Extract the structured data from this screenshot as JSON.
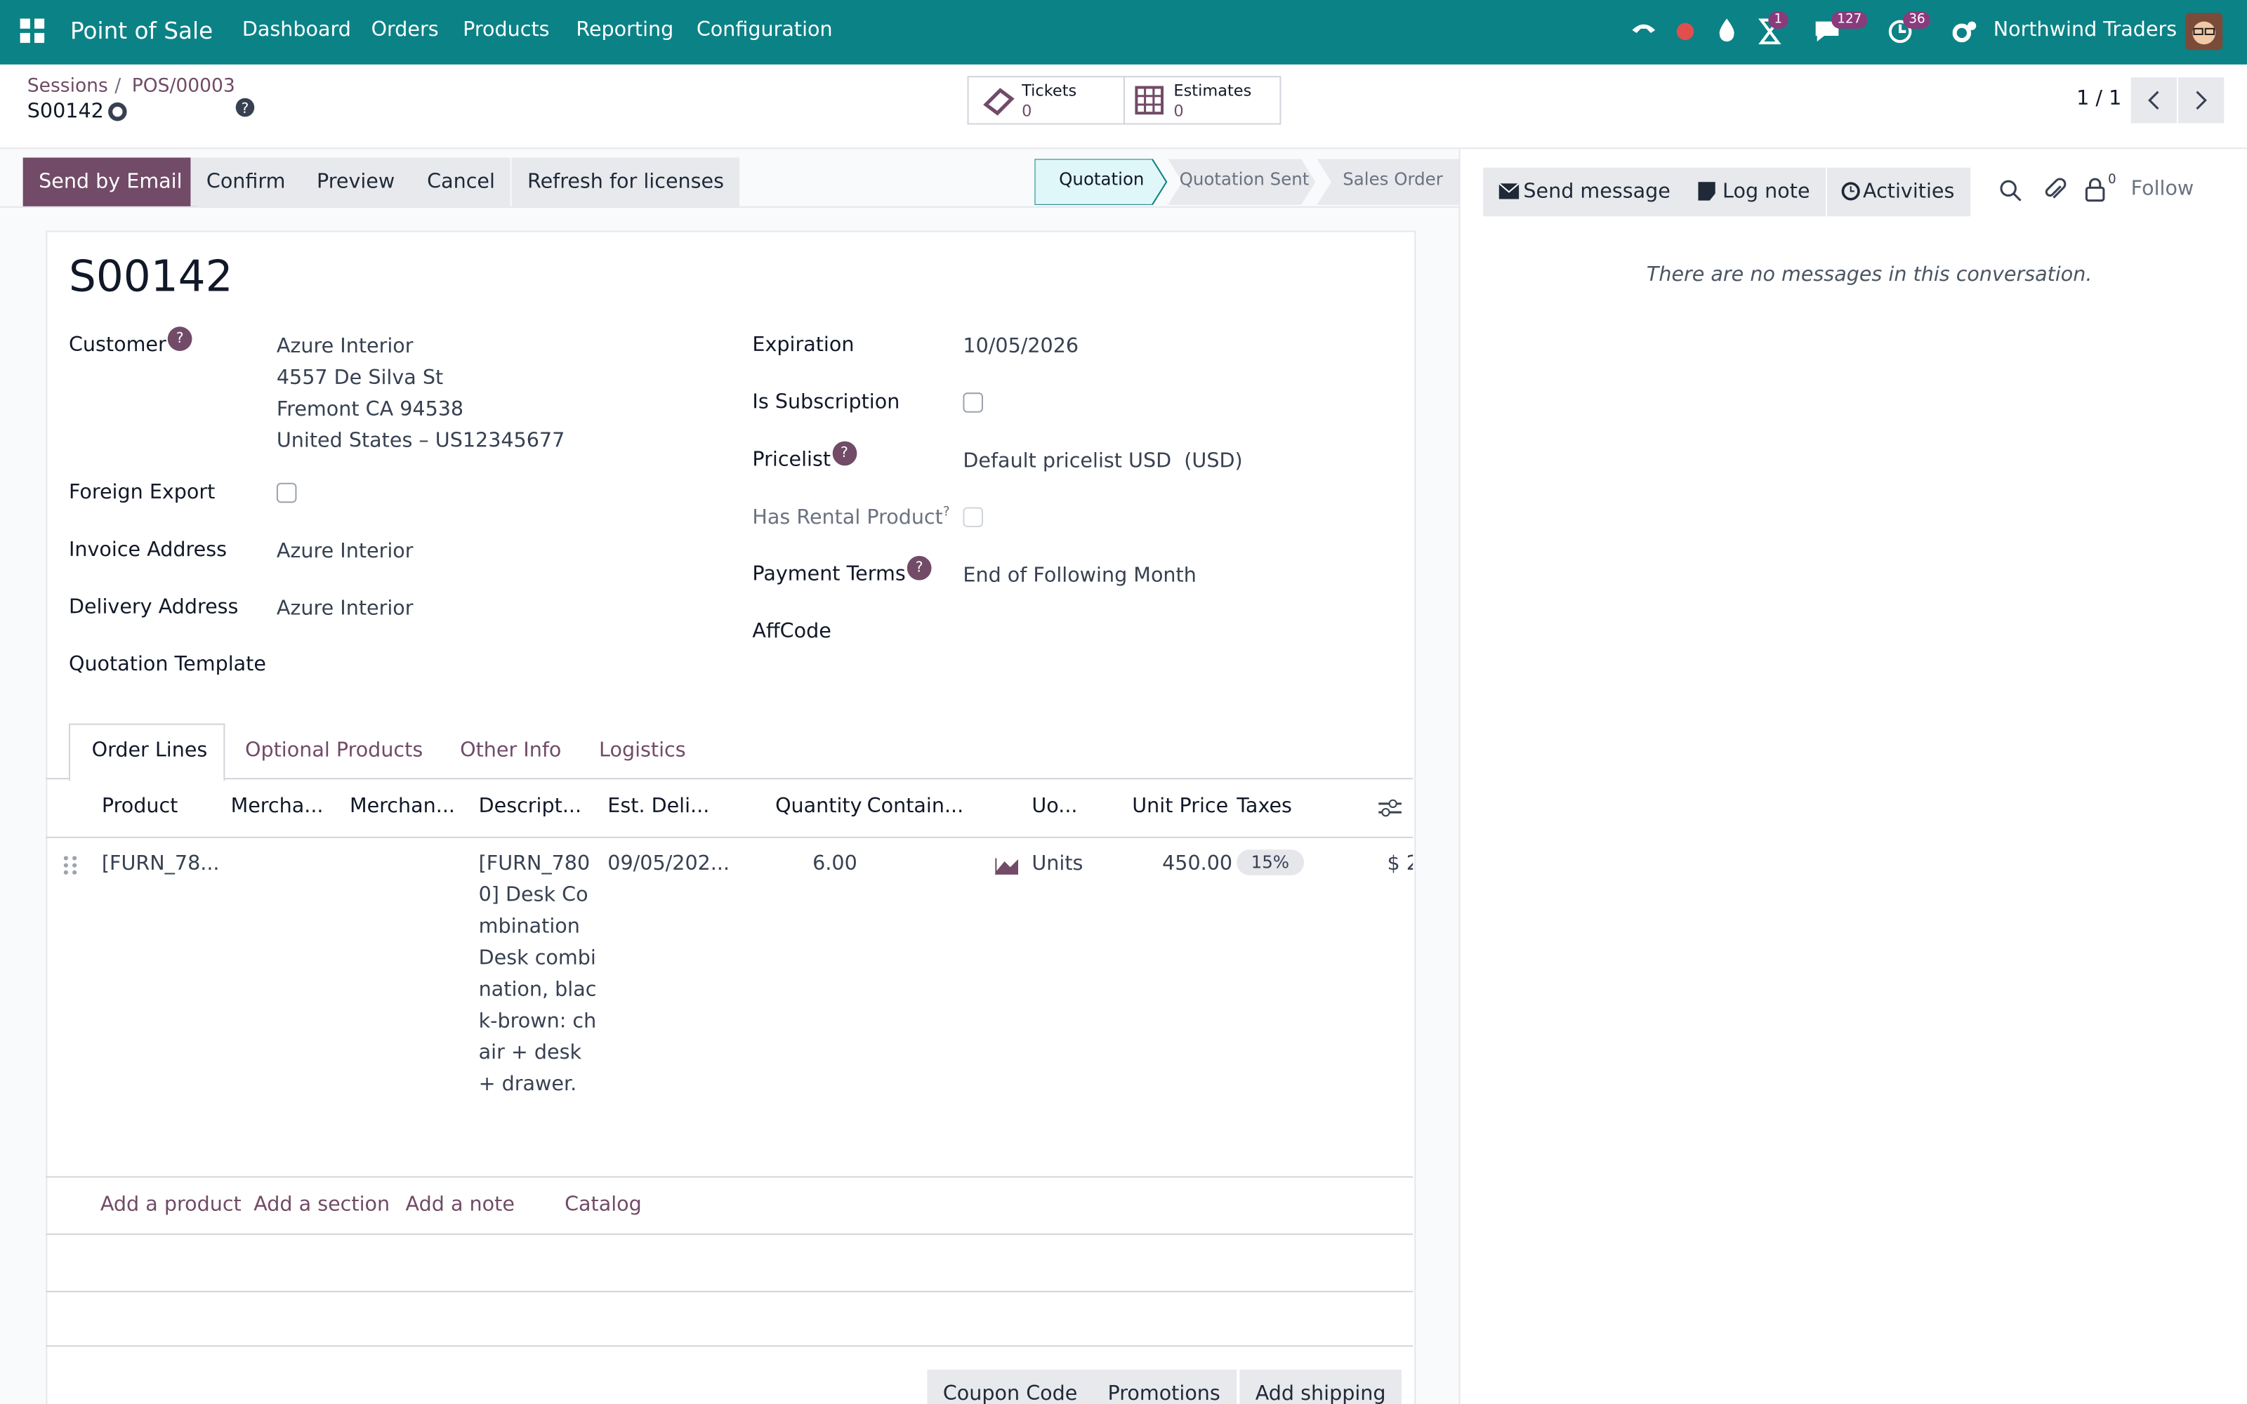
{
  "navbar": {
    "app_name": "Point of Sale",
    "menu": [
      "Dashboard",
      "Orders",
      "Products",
      "Reporting",
      "Configuration"
    ],
    "badges": [
      "1",
      "127",
      "36"
    ],
    "company": "Northwind Traders"
  },
  "control_panel": {
    "breadcrumb": [
      "Sessions",
      "POS/00003"
    ],
    "record": "S00142",
    "smart_buttons": [
      {
        "label": "Tickets",
        "value": 0
      },
      {
        "label": "Estimates",
        "value": 0
      }
    ],
    "pager": "1 / 1"
  },
  "actions": [
    "Send by Email",
    "Confirm",
    "Preview",
    "Cancel",
    "Refresh for licenses"
  ],
  "statusbar": [
    "Quotation",
    "Quotation Sent",
    "Sales Order"
  ],
  "chatter": {
    "buttons": [
      "Send message",
      "Log note",
      "Activities"
    ],
    "followers": "0",
    "follow": "Follow",
    "empty": "There are no messages in this conversation."
  },
  "form": {
    "name": "S00142",
    "help_marker": "?",
    "left": [
      {
        "label": "Customer",
        "value": [
          "Azure Interior",
          "4557 De Silva St",
          "Fremont CA 94538",
          "United States – US12345677"
        ]
      },
      {
        "label": "Foreign Export"
      },
      {
        "label": "Invoice Address",
        "value": [
          "Azure Interior"
        ]
      },
      {
        "label": "Delivery Address",
        "value": [
          "Azure Interior"
        ]
      },
      {
        "label": "Quotation Template"
      }
    ],
    "right": [
      {
        "label": "Expiration",
        "value": [
          "10/05/2026"
        ]
      },
      {
        "label": "Is Subscription"
      },
      {
        "label": "Pricelist",
        "value": [
          "Default pricelist USD  (USD)"
        ]
      },
      {
        "label": "Has Rental Product"
      },
      {
        "label": "Payment Terms",
        "value": [
          "End of Following Month"
        ]
      },
      {
        "label": "AffCode"
      }
    ]
  },
  "tabs": [
    "Order Lines",
    "Optional Products",
    "Other Info",
    "Logistics"
  ],
  "table": {
    "columns": [
      "Product",
      "Mercha...",
      "Merchan...",
      "Descript...",
      "Est. Deli...",
      "Quantity",
      "Contain...",
      "Uo...",
      "Unit Price",
      "Taxes"
    ],
    "rows": [
      {
        "product": "[FURN_78...",
        "description": "[FURN_7800] Desk Combination\nDesk combination, black-brown: chair + desk + drawer.",
        "date": "09/05/202...",
        "quantity": "6.00",
        "uom": "Units",
        "price": "450.00",
        "tax": "15%",
        "subtotal": "$ 2"
      }
    ],
    "add_links": [
      "Add a product",
      "Add a section",
      "Add a note",
      "Catalog"
    ]
  },
  "bottom_buttons": [
    "Coupon Code",
    "Promotions",
    "Add shipping"
  ]
}
